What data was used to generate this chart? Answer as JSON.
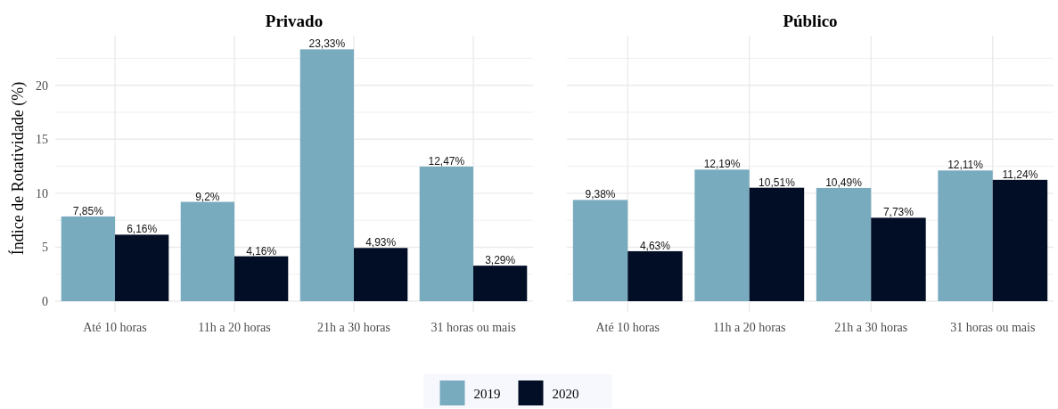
{
  "chart_data": [
    {
      "type": "bar",
      "title": "Privado",
      "ylabel": "Índice de Rotatividade (%)",
      "categories": [
        "Até 10 horas",
        "11h a 20 horas",
        "21h a 30 horas",
        "31 horas ou mais"
      ],
      "series": [
        {
          "name": "2019",
          "color": "#79abbf",
          "values": [
            7.85,
            9.2,
            23.33,
            12.47
          ],
          "value_labels": [
            "7,85%",
            "9,2%",
            "23,33%",
            "12,47%"
          ]
        },
        {
          "name": "2020",
          "color": "#020e26",
          "values": [
            6.16,
            4.16,
            4.93,
            3.29
          ],
          "value_labels": [
            "6,16%",
            "4,16%",
            "4,93%",
            "3,29%"
          ]
        }
      ],
      "ylim": [
        0,
        24.6
      ],
      "yticks": [
        0,
        {
          "value": 2.5,
          "label": null
        },
        5,
        {
          "value": 7.5,
          "label": null
        },
        10,
        {
          "value": 12.5,
          "label": null
        },
        15,
        {
          "value": 17.5,
          "label": null
        },
        20,
        {
          "value": 22.5,
          "label": null
        }
      ],
      "grid": true,
      "legend": "bottom"
    },
    {
      "type": "bar",
      "title": "Público",
      "categories": [
        "Até 10 horas",
        "11h a 20 horas",
        "21h a 30 horas",
        "31 horas ou mais"
      ],
      "series": [
        {
          "name": "2019",
          "color": "#79abbf",
          "values": [
            9.38,
            12.19,
            10.49,
            12.11
          ],
          "value_labels": [
            "9,38%",
            "12,19%",
            "10,49%",
            "12,11%"
          ]
        },
        {
          "name": "2020",
          "color": "#020e26",
          "values": [
            4.63,
            10.51,
            7.73,
            11.24
          ],
          "value_labels": [
            "4,63%",
            "10,51%",
            "7,73%",
            "11,24%"
          ]
        }
      ],
      "ylim": [
        0,
        24.6
      ],
      "yticks": [
        0,
        {
          "value": 2.5,
          "label": null
        },
        5,
        {
          "value": 7.5,
          "label": null
        },
        10,
        {
          "value": 12.5,
          "label": null
        },
        15,
        {
          "value": 17.5,
          "label": null
        },
        20,
        {
          "value": 22.5,
          "label": null
        }
      ],
      "grid": true,
      "legend": "bottom",
      "tick_labels": "x"
    }
  ]
}
